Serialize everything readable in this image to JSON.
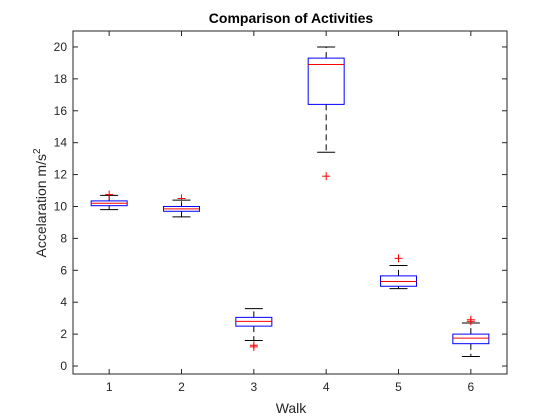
{
  "chart_data": {
    "type": "box",
    "title": "Comparison of Activities",
    "xlabel": "Walk",
    "ylabel_main": "Accelaration m/s",
    "ylabel_sup": "2",
    "categories": [
      "1",
      "2",
      "3",
      "4",
      "5",
      "6"
    ],
    "ylim": [
      -0.5,
      21
    ],
    "yticks": [
      0,
      2,
      4,
      6,
      8,
      10,
      12,
      14,
      16,
      18,
      20
    ],
    "grid": false,
    "box_color": "#0000ff",
    "median_color": "#ff0000",
    "whisker_color": "#000000",
    "outlier_color": "#ff0000",
    "series": [
      {
        "category": "1",
        "whisker_low": 9.8,
        "q1": 10.05,
        "median": 10.2,
        "q3": 10.35,
        "whisker_high": 10.7,
        "outliers": [
          10.75
        ]
      },
      {
        "category": "2",
        "whisker_low": 9.35,
        "q1": 9.7,
        "median": 9.85,
        "q3": 10.0,
        "whisker_high": 10.4,
        "outliers": [
          10.5
        ]
      },
      {
        "category": "3",
        "whisker_low": 1.6,
        "q1": 2.5,
        "median": 2.8,
        "q3": 3.05,
        "whisker_high": 3.6,
        "outliers": [
          1.3,
          1.2
        ]
      },
      {
        "category": "4",
        "whisker_low": 13.4,
        "q1": 16.4,
        "median": 18.9,
        "q3": 19.3,
        "whisker_high": 20.0,
        "outliers": [
          11.9
        ]
      },
      {
        "category": "5",
        "whisker_low": 4.85,
        "q1": 5.0,
        "median": 5.3,
        "q3": 5.65,
        "whisker_high": 6.3,
        "outliers": [
          6.75
        ]
      },
      {
        "category": "6",
        "whisker_low": 0.6,
        "q1": 1.4,
        "median": 1.75,
        "q3": 2.0,
        "whisker_high": 2.7,
        "outliers": [
          2.8,
          2.9
        ]
      }
    ]
  }
}
